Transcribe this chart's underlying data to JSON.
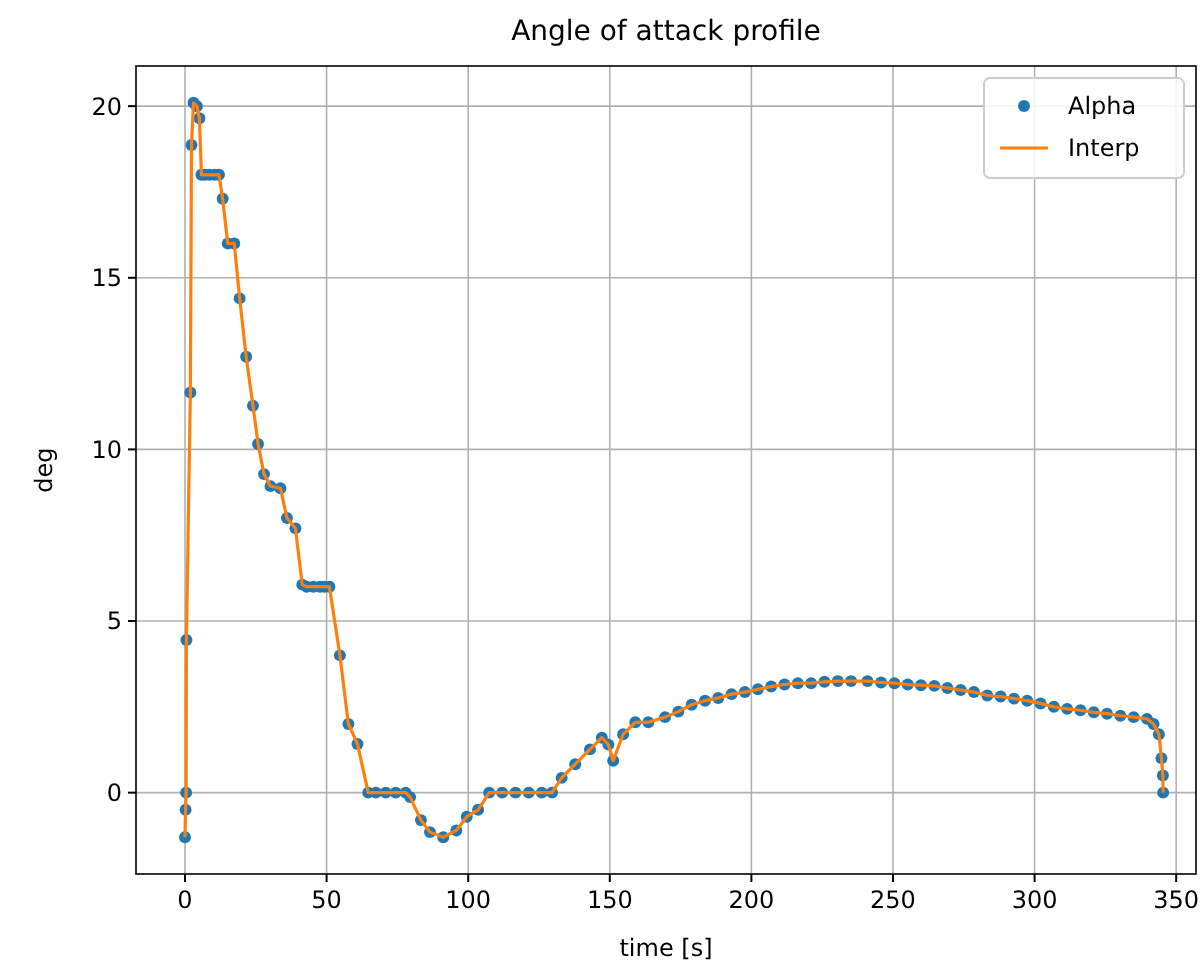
{
  "chart_data": {
    "type": "line",
    "title": "Angle of attack profile",
    "xlabel": "time [s]",
    "ylabel": "deg",
    "x": [
      0,
      0.2,
      0.4,
      0.5,
      1.9,
      2.3,
      3,
      4.2,
      5.1,
      5.8,
      7,
      8.6,
      10.5,
      12,
      13.3,
      15.1,
      17.4,
      19.3,
      21.6,
      24,
      25.8,
      27.9,
      30.2,
      33.7,
      36,
      39,
      41.4,
      43,
      45.3,
      47.6,
      49.2,
      51,
      54.7,
      57.7,
      60.9,
      64.7,
      67.4,
      70.9,
      74.4,
      77.9,
      79.5,
      83.3,
      86.5,
      91.2,
      95.8,
      99.5,
      103.5,
      107.4,
      112,
      116.7,
      121.4,
      126,
      129.6,
      133,
      137.8,
      143,
      147.2,
      149.5,
      151.2,
      154.7,
      159,
      163.6,
      169.5,
      174.2,
      178.9,
      183.6,
      188.3,
      193,
      197.7,
      202.3,
      207,
      211.7,
      216.4,
      221.1,
      225.8,
      230.5,
      235.2,
      241,
      245.8,
      250.5,
      255.2,
      259.9,
      264.6,
      269.2,
      273.9,
      278.6,
      283.3,
      288,
      292.7,
      297.4,
      302.1,
      306.8,
      311.5,
      316.2,
      320.9,
      325.6,
      330.3,
      335,
      339.7,
      342,
      343.9,
      344.8,
      345.3,
      345.4
    ],
    "series": [
      {
        "name": "Alpha",
        "type": "scatter",
        "marker": "circle",
        "color": "#1f77b4",
        "values": [
          -1.3,
          -0.5,
          0,
          4.45,
          11.66,
          18.87,
          20.1,
          20,
          19.65,
          18,
          18,
          18,
          18,
          18,
          17.3,
          16,
          16,
          14.4,
          12.7,
          11.27,
          10.16,
          9.28,
          8.93,
          8.87,
          8,
          7.7,
          6.06,
          6,
          6,
          6,
          6,
          6,
          4,
          2,
          1.42,
          0,
          0,
          0,
          0,
          0,
          -0.13,
          -0.8,
          -1.15,
          -1.3,
          -1.1,
          -0.7,
          -0.5,
          0,
          0,
          0,
          0,
          0,
          0,
          0.43,
          0.83,
          1.26,
          1.6,
          1.4,
          0.93,
          1.7,
          2.05,
          2.05,
          2.2,
          2.36,
          2.56,
          2.68,
          2.76,
          2.87,
          2.93,
          3.01,
          3.09,
          3.15,
          3.19,
          3.19,
          3.23,
          3.25,
          3.25,
          3.25,
          3.21,
          3.19,
          3.15,
          3.13,
          3.11,
          3.05,
          2.99,
          2.93,
          2.83,
          2.8,
          2.74,
          2.68,
          2.6,
          2.5,
          2.44,
          2.4,
          2.34,
          2.3,
          2.24,
          2.2,
          2.15,
          2,
          1.7,
          1,
          0.5,
          0
        ]
      },
      {
        "name": "Interp",
        "marker": "none",
        "color": "#ff7f0e",
        "values": [
          -1.3,
          -0.5,
          0,
          4.45,
          11.66,
          18.87,
          20.1,
          20,
          19.65,
          18,
          18,
          18,
          18,
          18,
          17.3,
          16,
          16,
          14.4,
          12.7,
          11.27,
          10.16,
          9.28,
          8.93,
          8.87,
          8,
          7.7,
          6.06,
          6,
          6,
          6,
          6,
          6,
          4,
          2,
          1.42,
          0,
          0,
          0,
          0,
          0,
          -0.13,
          -0.8,
          -1.15,
          -1.3,
          -1.1,
          -0.7,
          -0.5,
          0,
          0,
          0,
          0,
          0,
          0,
          0.43,
          0.83,
          1.26,
          1.6,
          1.4,
          0.93,
          1.7,
          2.05,
          2.05,
          2.2,
          2.36,
          2.56,
          2.68,
          2.76,
          2.87,
          2.93,
          3.01,
          3.09,
          3.15,
          3.19,
          3.19,
          3.23,
          3.25,
          3.25,
          3.25,
          3.21,
          3.19,
          3.15,
          3.13,
          3.11,
          3.05,
          2.99,
          2.93,
          2.83,
          2.8,
          2.74,
          2.68,
          2.6,
          2.5,
          2.44,
          2.4,
          2.34,
          2.3,
          2.24,
          2.2,
          2.15,
          2,
          1.7,
          1,
          0.5,
          0
        ]
      }
    ],
    "xlim": [
      -17.3,
      357
    ],
    "xticks": [
      0,
      50,
      100,
      150,
      200,
      250,
      300,
      350
    ],
    "ylim": [
      -2.37,
      21.17
    ],
    "yticks": [
      0,
      5,
      10,
      15,
      20
    ],
    "grid": true,
    "legend": "top right",
    "line_style": "solid"
  }
}
